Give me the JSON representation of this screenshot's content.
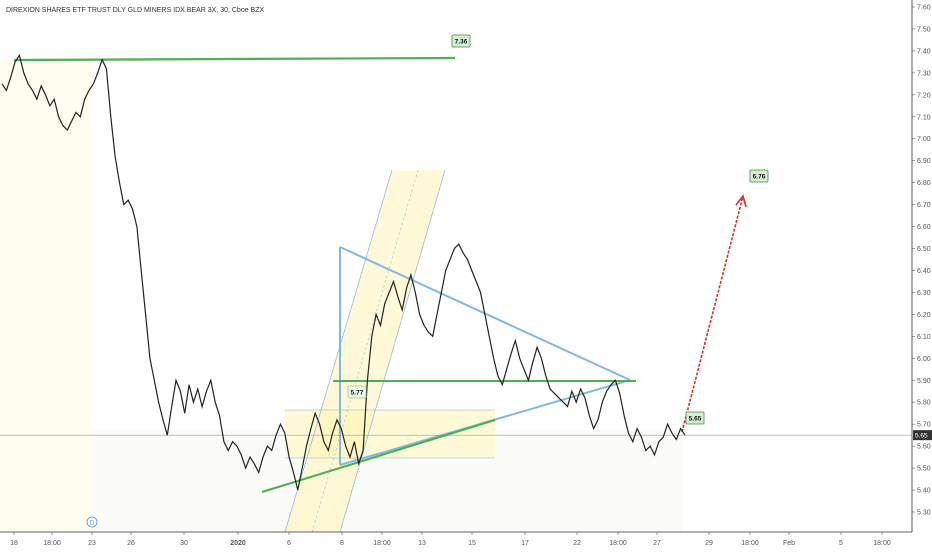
{
  "chart_data": {
    "type": "line",
    "title": "DIREXION SHARES ETF TRUST DLY GLD MINERS IDX BEAR 3X, 30, Cboe BZX",
    "x_ticks": [
      "18",
      "18:00",
      "23",
      "26",
      "30",
      "2020",
      "6",
      "8",
      "18:00",
      "13",
      "15",
      "17",
      "22",
      "18:00",
      "27",
      "29",
      "18:00",
      "Feb",
      "5",
      "18:00"
    ],
    "y_ticks": [
      "5.30",
      "5.40",
      "5.50",
      "5.60",
      "5.70",
      "5.80",
      "5.90",
      "6.00",
      "6.10",
      "6.20",
      "6.30",
      "6.40",
      "6.50",
      "6.60",
      "6.70",
      "6.80",
      "6.90",
      "7.00",
      "7.10",
      "7.20",
      "7.30",
      "7.40",
      "7.50",
      "7.60"
    ],
    "ylim": [
      5.24,
      7.65
    ],
    "last_price": "5.65",
    "series": [
      {
        "values": [
          7.25,
          7.22,
          7.28,
          7.35,
          7.38,
          7.3,
          7.25,
          7.22,
          7.18,
          7.24,
          7.2,
          7.15,
          7.18,
          7.1,
          7.06,
          7.04,
          7.08,
          7.12,
          7.1,
          7.18,
          7.22,
          7.25,
          7.3,
          7.36,
          7.32,
          7.1,
          6.92,
          6.8,
          6.7,
          6.72,
          6.68,
          6.6,
          6.4,
          6.2,
          6.0,
          5.9,
          5.8,
          5.72,
          5.65,
          5.78,
          5.9,
          5.85,
          5.75,
          5.88,
          5.8,
          5.86,
          5.78,
          5.85,
          5.9,
          5.8,
          5.74,
          5.62,
          5.58,
          5.62,
          5.6,
          5.56,
          5.5,
          5.55,
          5.52,
          5.48,
          5.55,
          5.6,
          5.58,
          5.65,
          5.7,
          5.66,
          5.55,
          5.48,
          5.4,
          5.5,
          5.6,
          5.68,
          5.75,
          5.7,
          5.62,
          5.58,
          5.66,
          5.72,
          5.68,
          5.6,
          5.55,
          5.62,
          5.52,
          5.58,
          5.9,
          6.1,
          6.2,
          6.15,
          6.25,
          6.3,
          6.35,
          6.28,
          6.22,
          6.32,
          6.38,
          6.3,
          6.2,
          6.15,
          6.12,
          6.1,
          6.2,
          6.3,
          6.4,
          6.45,
          6.5,
          6.52,
          6.48,
          6.45,
          6.4,
          6.35,
          6.3,
          6.2,
          6.1,
          6.0,
          5.92,
          5.88,
          5.95,
          6.02,
          6.08,
          6.0,
          5.95,
          5.9,
          5.98,
          6.05,
          6.0,
          5.92,
          5.86,
          5.84,
          5.82,
          5.8,
          5.78,
          5.85,
          5.8,
          5.86,
          5.82,
          5.74,
          5.68,
          5.72,
          5.8,
          5.85,
          5.88,
          5.9,
          5.84,
          5.74,
          5.66,
          5.62,
          5.68,
          5.64,
          5.58,
          5.6,
          5.56,
          5.62,
          5.64,
          5.7,
          5.66,
          5.63,
          5.68,
          5.65
        ]
      }
    ],
    "annotations": [
      {
        "label": "7.36",
        "price": 7.36
      },
      {
        "label": "6.76",
        "price": 6.76
      },
      {
        "label": "5.65",
        "price": 5.65
      },
      {
        "label": "5.77",
        "price": 5.77
      }
    ],
    "dividend_marker": "D",
    "colors": {
      "price_line": "#222222",
      "trend_green": "#4caf50",
      "triangle_blue": "#7fb8e0",
      "channel_yellow": "#fff2a8",
      "projection_red": "#d32f2f",
      "tag_fill": "#d7efd3",
      "tag_border": "#3e8e41"
    }
  }
}
